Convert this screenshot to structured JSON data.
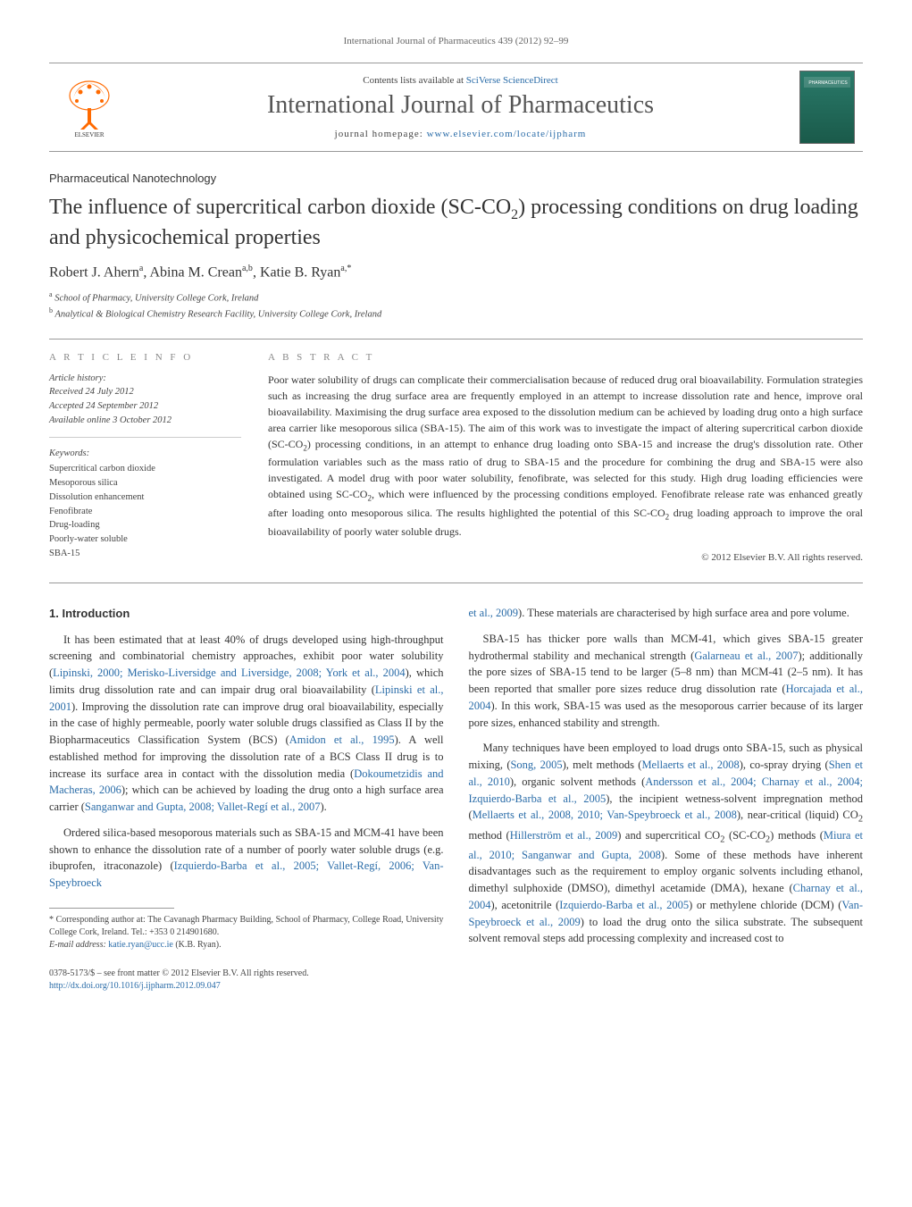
{
  "running_header": {
    "journal": "International Journal of Pharmaceutics",
    "citation": "439 (2012) 92–99"
  },
  "masthead": {
    "contents_prefix": "Contents lists available at ",
    "contents_link": "SciVerse ScienceDirect",
    "journal_name": "International Journal of Pharmaceutics",
    "homepage_prefix": "journal homepage: ",
    "homepage_url": "www.elsevier.com/locate/ijpharm",
    "publisher_logo_alt": "Elsevier",
    "cover_label": "PHARMACEUTICS"
  },
  "section_label": "Pharmaceutical Nanotechnology",
  "title_html": "The influence of supercritical carbon dioxide (SC-CO<sub>2</sub>) processing conditions on drug loading and physicochemical properties",
  "authors_html": "Robert J. Ahern<span class='sup'>a</span>, Abina M. Crean<span class='sup'>a,b</span>, Katie B. Ryan<span class='sup'>a,</span><span class='sup star'>*</span>",
  "affiliations": [
    {
      "sup": "a",
      "text": "School of Pharmacy, University College Cork, Ireland"
    },
    {
      "sup": "b",
      "text": "Analytical & Biological Chemistry Research Facility, University College Cork, Ireland"
    }
  ],
  "info": {
    "heading": "A R T I C L E   I N F O",
    "history_label": "Article history:",
    "received": "Received 24 July 2012",
    "accepted": "Accepted 24 September 2012",
    "online": "Available online 3 October 2012",
    "keywords_label": "Keywords:",
    "keywords": [
      "Supercritical carbon dioxide",
      "Mesoporous silica",
      "Dissolution enhancement",
      "Fenofibrate",
      "Drug-loading",
      "Poorly-water soluble",
      "SBA-15"
    ]
  },
  "abstract": {
    "heading": "A B S T R A C T",
    "text_html": "Poor water solubility of drugs can complicate their commercialisation because of reduced drug oral bioavailability. Formulation strategies such as increasing the drug surface area are frequently employed in an attempt to increase dissolution rate and hence, improve oral bioavailability. Maximising the drug surface area exposed to the dissolution medium can be achieved by loading drug onto a high surface area carrier like mesoporous silica (SBA-15). The aim of this work was to investigate the impact of altering supercritical carbon dioxide (SC-CO<sub>2</sub>) processing conditions, in an attempt to enhance drug loading onto SBA-15 and increase the drug's dissolution rate. Other formulation variables such as the mass ratio of drug to SBA-15 and the procedure for combining the drug and SBA-15 were also investigated. A model drug with poor water solubility, fenofibrate, was selected for this study. High drug loading efficiencies were obtained using SC-CO<sub>2</sub>, which were influenced by the processing conditions employed. Fenofibrate release rate was enhanced greatly after loading onto mesoporous silica. The results highlighted the potential of this SC-CO<sub>2</sub> drug loading approach to improve the oral bioavailability of poorly water soluble drugs."
  },
  "copyright": "© 2012 Elsevier B.V. All rights reserved.",
  "body": {
    "section_number": "1.",
    "section_title": "Introduction",
    "col1_p1": "It has been estimated that at least 40% of drugs developed using high-throughput screening and combinatorial chemistry approaches, exhibit poor water solubility (<a href='#'>Lipinski, 2000; Merisko-Liversidge and Liversidge, 2008; York et al., 2004</a>), which limits drug dissolution rate and can impair drug oral bioavailability (<a href='#'>Lipinski et al., 2001</a>). Improving the dissolution rate can improve drug oral bioavailability, especially in the case of highly permeable, poorly water soluble drugs classified as Class II by the Biopharmaceutics Classification System (BCS) (<a href='#'>Amidon et al., 1995</a>). A well established method for improving the dissolution rate of a BCS Class II drug is to increase its surface area in contact with the dissolution media (<a href='#'>Dokoumetzidis and Macheras, 2006</a>); which can be achieved by loading the drug onto a high surface area carrier (<a href='#'>Sanganwar and Gupta, 2008; Vallet-Regí et al., 2007</a>).",
    "col1_p2": "Ordered silica-based mesoporous materials such as SBA-15 and MCM-41 have been shown to enhance the dissolution rate of a number of poorly water soluble drugs (e.g. ibuprofen, itraconazole) (<a href='#'>Izquierdo-Barba et al., 2005; Vallet-Regí, 2006; Van-Speybroeck</a>",
    "col2_p1": "<a href='#'>et al., 2009</a>). These materials are characterised by high surface area and pore volume.",
    "col2_p2": "SBA-15 has thicker pore walls than MCM-41, which gives SBA-15 greater hydrothermal stability and mechanical strength (<a href='#'>Galarneau et al., 2007</a>); additionally the pore sizes of SBA-15 tend to be larger (5–8 nm) than MCM-41 (2–5 nm). It has been reported that smaller pore sizes reduce drug dissolution rate (<a href='#'>Horcajada et al., 2004</a>). In this work, SBA-15 was used as the mesoporous carrier because of its larger pore sizes, enhanced stability and strength.",
    "col2_p3": "Many techniques have been employed to load drugs onto SBA-15, such as physical mixing, (<a href='#'>Song, 2005</a>), melt methods (<a href='#'>Mellaerts et al., 2008</a>), co-spray drying (<a href='#'>Shen et al., 2010</a>), organic solvent methods (<a href='#'>Andersson et al., 2004; Charnay et al., 2004; Izquierdo-Barba et al., 2005</a>), the incipient wetness-solvent impregnation method (<a href='#'>Mellaerts et al., 2008, 2010; Van-Speybroeck et al., 2008</a>), near-critical (liquid) CO<sub>2</sub> method (<a href='#'>Hillerström et al., 2009</a>) and supercritical CO<sub>2</sub> (SC-CO<sub>2</sub>) methods (<a href='#'>Miura et al., 2010; Sanganwar and Gupta, 2008</a>). Some of these methods have inherent disadvantages such as the requirement to employ organic solvents including ethanol, dimethyl sulphoxide (DMSO), dimethyl acetamide (DMA), hexane (<a href='#'>Charnay et al., 2004</a>), acetonitrile (<a href='#'>Izquierdo-Barba et al., 2005</a>) or methylene chloride (DCM) (<a href='#'>Van-Speybroeck et al., 2009</a>) to load the drug onto the silica substrate. The subsequent solvent removal steps add processing complexity and increased cost to"
  },
  "footnote": {
    "corresponding": "* Corresponding author at: The Cavanagh Pharmacy Building, School of Pharmacy, College Road, University College Cork, Ireland. Tel.: +353 0 214901680.",
    "email_label": "E-mail address:",
    "email": "katie.ryan@ucc.ie",
    "email_suffix": "(K.B. Ryan)."
  },
  "doi": {
    "issn_line": "0378-5173/$ – see front matter © 2012 Elsevier B.V. All rights reserved.",
    "doi_url": "http://dx.doi.org/10.1016/j.ijpharm.2012.09.047"
  },
  "colors": {
    "link": "#2a6ca8",
    "text": "#333333",
    "muted": "#666666",
    "rule": "#999999",
    "cover_bg_top": "#2a7a6a",
    "cover_bg_bottom": "#1a5a4a",
    "elsevier_orange": "#ff6a00"
  },
  "typography": {
    "body_pt": 12.5,
    "title_pt": 24,
    "journal_name_pt": 28,
    "abstract_pt": 12,
    "info_small_pt": 10.5,
    "footnote_pt": 10
  }
}
